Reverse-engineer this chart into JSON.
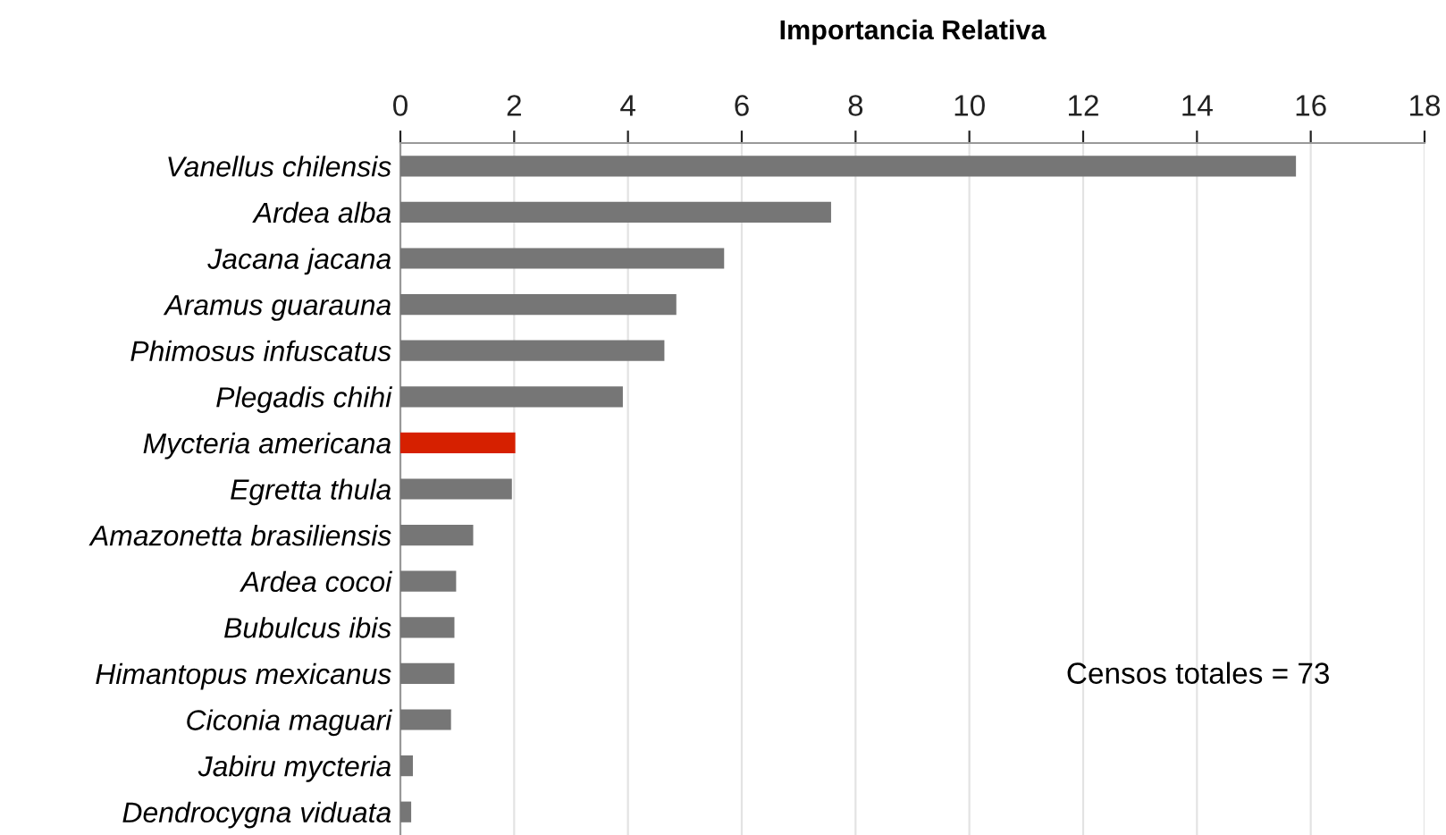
{
  "chart_data": {
    "type": "bar",
    "orientation": "horizontal",
    "title": "Importancia Relativa",
    "categories": [
      "Vanellus chilensis",
      "Ardea alba",
      "Jacana jacana",
      "Aramus guarauna",
      "Phimosus infuscatus",
      "Plegadis chihi",
      "Mycteria americana",
      "Egretta thula",
      "Amazonetta brasiliensis",
      "Ardea cocoi",
      "Bubulcus ibis",
      "Himantopus mexicanus",
      "Ciconia maguari",
      "Jabiru mycteria",
      "Dendrocygna viduata"
    ],
    "values": [
      15.74,
      7.57,
      5.69,
      4.85,
      4.64,
      3.91,
      2.02,
      1.96,
      1.28,
      0.98,
      0.95,
      0.95,
      0.89,
      0.22,
      0.19
    ],
    "colors": [
      "#767676",
      "#767676",
      "#767676",
      "#767676",
      "#767676",
      "#767676",
      "#d62000",
      "#767676",
      "#767676",
      "#767676",
      "#767676",
      "#767676",
      "#767676",
      "#767676",
      "#767676"
    ],
    "xlim": [
      0,
      18
    ],
    "xticks": [
      0,
      2,
      4,
      6,
      8,
      10,
      12,
      14,
      16,
      18
    ],
    "grid": "x",
    "annotations": [
      "Censos totales = 73"
    ]
  }
}
